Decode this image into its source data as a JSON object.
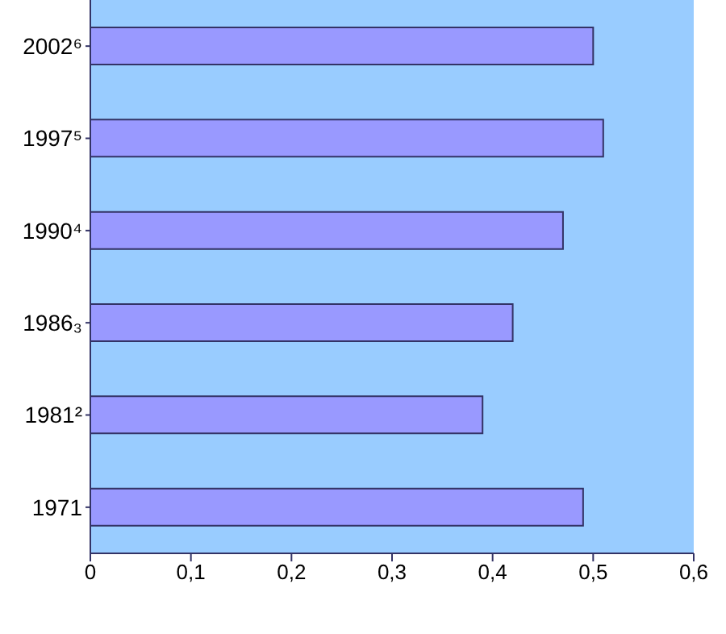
{
  "chart_data": {
    "type": "bar",
    "orientation": "horizontal",
    "categories": [
      "2002⁶",
      "1997⁵",
      "1990⁴",
      "1986₃",
      "1981²",
      "1971"
    ],
    "values": [
      0.5,
      0.51,
      0.47,
      0.42,
      0.39,
      0.49
    ],
    "color": "#9999ff",
    "xlim": [
      0,
      0.6
    ],
    "xticks": [
      {
        "value": 0,
        "label": "0"
      },
      {
        "value": 0.1,
        "label": "0,1"
      },
      {
        "value": 0.2,
        "label": "0,2"
      },
      {
        "value": 0.3,
        "label": "0,3"
      },
      {
        "value": 0.4,
        "label": "0,4"
      },
      {
        "value": 0.5,
        "label": "0,5"
      },
      {
        "value": 0.6,
        "label": "0,6"
      }
    ],
    "grid": false,
    "legend": false
  }
}
